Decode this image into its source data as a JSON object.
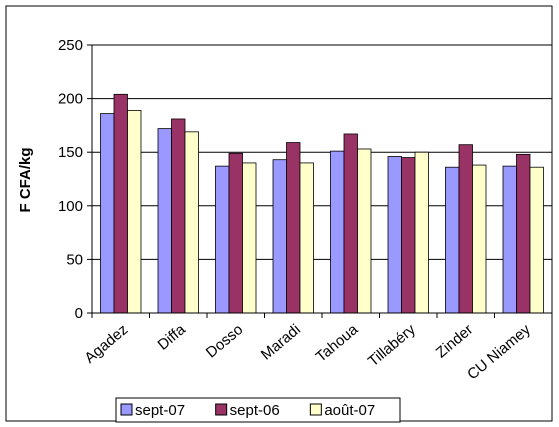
{
  "chart_data": {
    "type": "bar",
    "y_label": "F CFA/kg",
    "categories": [
      "Agadez",
      "Diffa",
      "Dosso",
      "Maradi",
      "Tahoua",
      "Tillabéry",
      "Zinder",
      "CU Niamey"
    ],
    "series": [
      {
        "name": "sept-07",
        "color": "#9999ff",
        "values": [
          186,
          172,
          137,
          143,
          151,
          146,
          136,
          137
        ]
      },
      {
        "name": "sept-06",
        "color": "#993366",
        "values": [
          204,
          181,
          149,
          159,
          167,
          145,
          157,
          148
        ]
      },
      {
        "name": "août-07",
        "color": "#ffffcc",
        "values": [
          189,
          169,
          140,
          140,
          153,
          150,
          138,
          136
        ]
      }
    ],
    "ylim": [
      0,
      250
    ],
    "yticks": [
      0,
      50,
      100,
      150,
      200,
      250
    ],
    "grid": true,
    "legend": "bottom"
  }
}
